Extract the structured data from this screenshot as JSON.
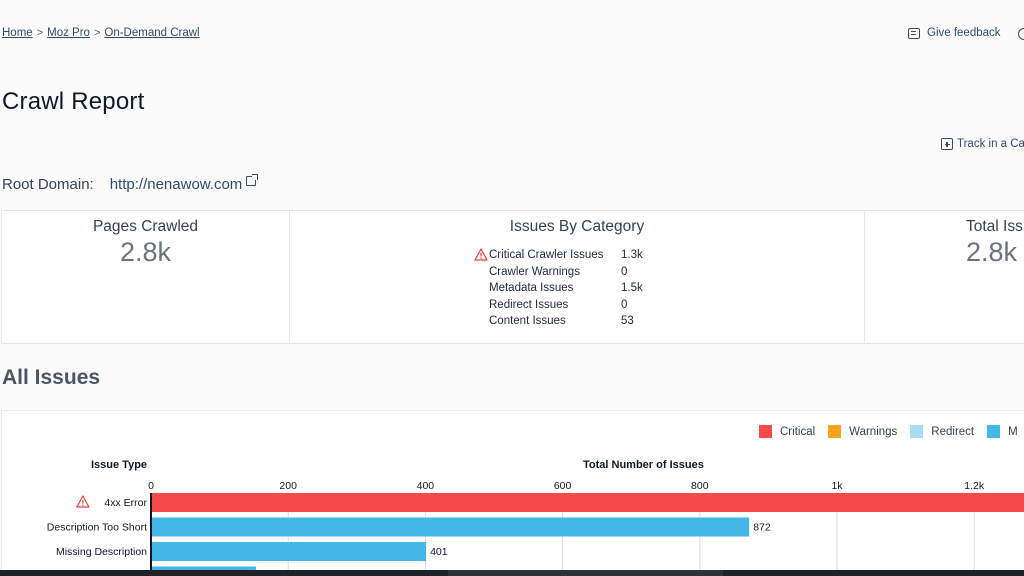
{
  "breadcrumb": {
    "items": [
      "Home",
      "Moz Pro",
      "On-Demand Crawl"
    ],
    "separator": ">"
  },
  "header": {
    "feedback_label": "Give feedback",
    "title": "Crawl Report",
    "track_label": "Track in a Ca"
  },
  "root_domain": {
    "label": "Root Domain:",
    "url": "http://nenawow.com"
  },
  "stats": {
    "pages_crawled": {
      "title": "Pages Crawled",
      "value": "2.8k"
    },
    "issues_by_category": {
      "title": "Issues By Category",
      "rows": [
        {
          "name": "Critical Crawler Issues",
          "value": "1.3k",
          "warning": true
        },
        {
          "name": "Crawler Warnings",
          "value": "0"
        },
        {
          "name": "Metadata Issues",
          "value": "1.5k"
        },
        {
          "name": "Redirect Issues",
          "value": "0"
        },
        {
          "name": "Content Issues",
          "value": "53"
        }
      ]
    },
    "total_issues": {
      "title": "Total Iss",
      "value": "2.8k"
    }
  },
  "all_issues": {
    "title": "All Issues",
    "column_type": "Issue Type",
    "column_total": "Total Number of Issues"
  },
  "colors": {
    "critical": "#f44a4a",
    "warnings": "#f7a21b",
    "redirect": "#a9dcf2",
    "metadata": "#45b6e8"
  },
  "chart_data": {
    "type": "bar",
    "orientation": "horizontal",
    "legend": [
      "Critical",
      "Warnings",
      "Redirect",
      "M"
    ],
    "legend_placement": "top-right",
    "xlabel": "Total Number of Issues",
    "ylabel": "Issue Type",
    "xlim": [
      0,
      1270
    ],
    "ticks": [
      {
        "value": 0,
        "label": "0"
      },
      {
        "value": 200,
        "label": "200"
      },
      {
        "value": 400,
        "label": "400"
      },
      {
        "value": 600,
        "label": "600"
      },
      {
        "value": 800,
        "label": "800"
      },
      {
        "value": 1000,
        "label": "1k"
      },
      {
        "value": 1200,
        "label": "1.2k"
      }
    ],
    "bars": [
      {
        "category": "4xx Error",
        "value": 1300,
        "series": "critical",
        "label": "",
        "warning": true
      },
      {
        "category": "Description Too Short",
        "value": 872,
        "series": "metadata",
        "label": "872"
      },
      {
        "category": "Missing Description",
        "value": 401,
        "series": "metadata",
        "label": "401"
      },
      {
        "category": "",
        "value": 153,
        "series": "metadata",
        "label": ""
      }
    ],
    "grid": true
  }
}
